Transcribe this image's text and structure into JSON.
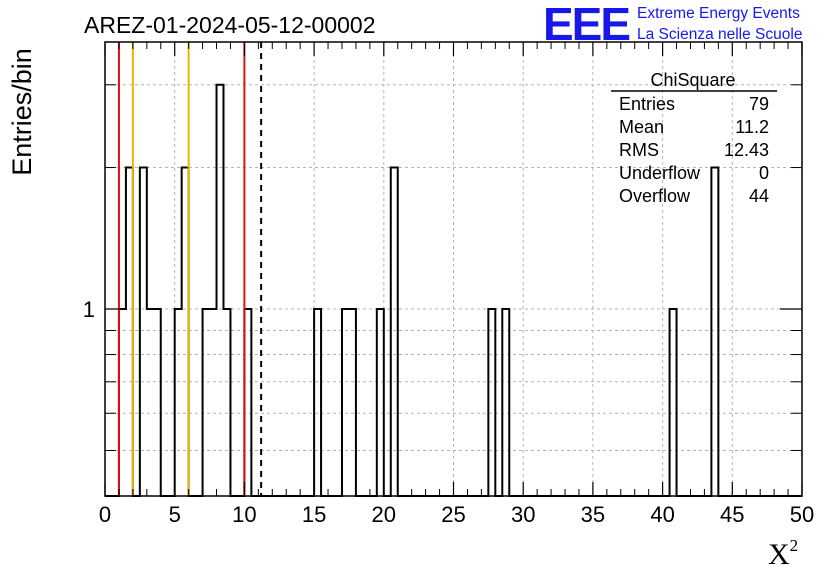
{
  "chart_data": {
    "type": "histogram",
    "title": "AREZ-01-2024-05-12-00002",
    "logo": {
      "mark": "EEE",
      "line1": "Extreme Energy Events",
      "line2": "La Scienza nelle Scuole"
    },
    "ylabel": "Entries/bin",
    "xlabel": "X",
    "xlabel_superscript": "2",
    "xlim": [
      0,
      50
    ],
    "ylim": [
      0.4,
      3.7
    ],
    "y_log_scale": true,
    "grid": true,
    "x_ticks": [
      "0",
      "5",
      "10",
      "15",
      "20",
      "25",
      "30",
      "35",
      "40",
      "45",
      "50"
    ],
    "y_tick_labels": [
      {
        "value": 1,
        "label": "1"
      }
    ],
    "bin_width": 0.5,
    "bins": [
      {
        "x": 1.0,
        "count": 1
      },
      {
        "x": 1.5,
        "count": 2
      },
      {
        "x": 2.5,
        "count": 2
      },
      {
        "x": 3.0,
        "count": 1
      },
      {
        "x": 3.5,
        "count": 1
      },
      {
        "x": 5.0,
        "count": 1
      },
      {
        "x": 5.5,
        "count": 2
      },
      {
        "x": 7.0,
        "count": 1
      },
      {
        "x": 7.5,
        "count": 1
      },
      {
        "x": 8.0,
        "count": 3
      },
      {
        "x": 8.5,
        "count": 1
      },
      {
        "x": 10.0,
        "count": 1
      },
      {
        "x": 15.0,
        "count": 1
      },
      {
        "x": 17.0,
        "count": 1
      },
      {
        "x": 17.5,
        "count": 1
      },
      {
        "x": 19.5,
        "count": 1
      },
      {
        "x": 20.5,
        "count": 2
      },
      {
        "x": 27.5,
        "count": 1
      },
      {
        "x": 28.5,
        "count": 1
      },
      {
        "x": 40.5,
        "count": 1
      },
      {
        "x": 43.5,
        "count": 2
      }
    ],
    "vertical_lines": [
      {
        "x": 1.0,
        "color": "#dd1111",
        "style": "solid"
      },
      {
        "x": 2.0,
        "color": "#f0b400",
        "style": "solid"
      },
      {
        "x": 6.0,
        "color": "#f0b400",
        "style": "solid"
      },
      {
        "x": 10.0,
        "color": "#dd1111",
        "style": "solid"
      },
      {
        "x": 11.2,
        "color": "#000000",
        "style": "dashed"
      }
    ],
    "stats_box": {
      "title": "ChiSquare",
      "rows": [
        {
          "label": "Entries",
          "value": "79"
        },
        {
          "label": "Mean",
          "value": "11.2"
        },
        {
          "label": "RMS",
          "value": "12.43"
        },
        {
          "label": "Underflow",
          "value": "0"
        },
        {
          "label": "Overflow",
          "value": "44"
        }
      ]
    }
  }
}
